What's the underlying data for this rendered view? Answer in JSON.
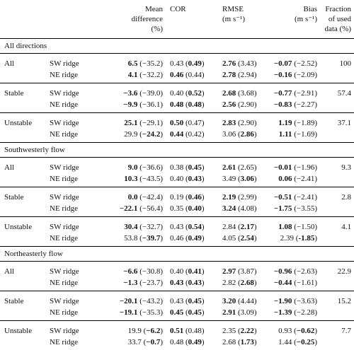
{
  "header": {
    "mean_difference": [
      "Mean",
      "difference",
      "(%)"
    ],
    "cor": "COR",
    "rmse": [
      "RMSE",
      "(m s⁻¹)"
    ],
    "bias": [
      "Bias",
      "(m s⁻¹)"
    ],
    "fraction": [
      "Fraction",
      "of used",
      "data (%)"
    ]
  },
  "sections": [
    {
      "title": "All directions",
      "groups": [
        {
          "condition": "All",
          "fraction": "100",
          "rows": [
            {
              "ridge": "SW ridge",
              "md_main": "6.5",
              "md_main_bold": true,
              "md_alt": "−35.2",
              "md_alt_bold": false,
              "cor_main": "0.43",
              "cor_main_bold": false,
              "cor_alt": "0.49",
              "cor_alt_bold": true,
              "rmse_main": "2.76",
              "rmse_main_bold": true,
              "rmse_alt": "3.43",
              "rmse_alt_bold": false,
              "bias_main": "−0.07",
              "bias_main_bold": true,
              "bias_alt": "−2.52",
              "bias_alt_bold": false
            },
            {
              "ridge": "NE ridge",
              "md_main": "4.1",
              "md_main_bold": true,
              "md_alt": "−32.2",
              "md_alt_bold": false,
              "cor_main": "0.46",
              "cor_main_bold": true,
              "cor_alt": "0.44",
              "cor_alt_bold": false,
              "rmse_main": "2.78",
              "rmse_main_bold": true,
              "rmse_alt": "2.94",
              "rmse_alt_bold": false,
              "bias_main": "−0.16",
              "bias_main_bold": true,
              "bias_alt": "−2.09",
              "bias_alt_bold": false
            }
          ]
        },
        {
          "condition": "Stable",
          "fraction": "57.4",
          "rows": [
            {
              "ridge": "SW ridge",
              "md_main": "−3.6",
              "md_main_bold": true,
              "md_alt": "−39.0",
              "md_alt_bold": false,
              "cor_main": "0.40",
              "cor_main_bold": false,
              "cor_alt": "0.52",
              "cor_alt_bold": true,
              "rmse_main": "2.68",
              "rmse_main_bold": true,
              "rmse_alt": "3.68",
              "rmse_alt_bold": false,
              "bias_main": "−0.77",
              "bias_main_bold": true,
              "bias_alt": "−2.91",
              "bias_alt_bold": false
            },
            {
              "ridge": "NE ridge",
              "md_main": "−9.9",
              "md_main_bold": true,
              "md_alt": "−36.1",
              "md_alt_bold": false,
              "cor_main": "0.48",
              "cor_main_bold": true,
              "cor_alt": "0.48",
              "cor_alt_bold": true,
              "rmse_main": "2.56",
              "rmse_main_bold": true,
              "rmse_alt": "2.90",
              "rmse_alt_bold": false,
              "bias_main": "−0.83",
              "bias_main_bold": true,
              "bias_alt": "−2.27",
              "bias_alt_bold": false
            }
          ]
        },
        {
          "condition": "Unstable",
          "fraction": "37.1",
          "rows": [
            {
              "ridge": "SW ridge",
              "md_main": "25.1",
              "md_main_bold": true,
              "md_alt": "−29.1",
              "md_alt_bold": false,
              "cor_main": "0.50",
              "cor_main_bold": true,
              "cor_alt": "0.47",
              "cor_alt_bold": false,
              "rmse_main": "2.83",
              "rmse_main_bold": true,
              "rmse_alt": "2.90",
              "rmse_alt_bold": false,
              "bias_main": "1.19",
              "bias_main_bold": true,
              "bias_alt": "−1.89",
              "bias_alt_bold": false
            },
            {
              "ridge": "NE ridge",
              "md_main": "29.9",
              "md_main_bold": false,
              "md_alt": "−24.2",
              "md_alt_bold": true,
              "cor_main": "0.44",
              "cor_main_bold": true,
              "cor_alt": "0.42",
              "cor_alt_bold": false,
              "rmse_main": "3.06",
              "rmse_main_bold": false,
              "rmse_alt": "2.86",
              "rmse_alt_bold": true,
              "bias_main": "1.11",
              "bias_main_bold": true,
              "bias_alt": "−1.69",
              "bias_alt_bold": false
            }
          ]
        }
      ]
    },
    {
      "title": "Southwesterly flow",
      "groups": [
        {
          "condition": "All",
          "fraction": "9.3",
          "rows": [
            {
              "ridge": "SW ridge",
              "md_main": "9.0",
              "md_main_bold": true,
              "md_alt": "−36.6",
              "md_alt_bold": false,
              "cor_main": "0.38",
              "cor_main_bold": false,
              "cor_alt": "0.45",
              "cor_alt_bold": true,
              "rmse_main": "2.61",
              "rmse_main_bold": true,
              "rmse_alt": "2.65",
              "rmse_alt_bold": false,
              "bias_main": "−0.01",
              "bias_main_bold": true,
              "bias_alt": "−1.96",
              "bias_alt_bold": false
            },
            {
              "ridge": "NE ridge",
              "md_main": "10.3",
              "md_main_bold": true,
              "md_alt": "−43.5",
              "md_alt_bold": false,
              "cor_main": "0.40",
              "cor_main_bold": false,
              "cor_alt": "0.43",
              "cor_alt_bold": true,
              "rmse_main": "3.49",
              "rmse_main_bold": false,
              "rmse_alt": "3.06",
              "rmse_alt_bold": true,
              "bias_main": "0.06",
              "bias_main_bold": true,
              "bias_alt": "−2.41",
              "bias_alt_bold": false
            }
          ]
        },
        {
          "condition": "Stable",
          "fraction": "2.8",
          "rows": [
            {
              "ridge": "SW ridge",
              "md_main": "0.0",
              "md_main_bold": true,
              "md_alt": "−42.4",
              "md_alt_bold": false,
              "cor_main": "0.19",
              "cor_main_bold": false,
              "cor_alt": "0.46",
              "cor_alt_bold": true,
              "rmse_main": "2.19",
              "rmse_main_bold": true,
              "rmse_alt": "2.99",
              "rmse_alt_bold": false,
              "bias_main": "−0.51",
              "bias_main_bold": true,
              "bias_alt": "−2.41",
              "bias_alt_bold": false
            },
            {
              "ridge": "NE ridge",
              "md_main": "−22.1",
              "md_main_bold": true,
              "md_alt": "−56.4",
              "md_alt_bold": false,
              "cor_main": "0.35",
              "cor_main_bold": false,
              "cor_alt": "0.40",
              "cor_alt_bold": true,
              "rmse_main": "3.24",
              "rmse_main_bold": true,
              "rmse_alt": "4.08",
              "rmse_alt_bold": false,
              "bias_main": "−1.75",
              "bias_main_bold": true,
              "bias_alt": "−3.55",
              "bias_alt_bold": false
            }
          ]
        },
        {
          "condition": "Unstable",
          "fraction": "4.1",
          "rows": [
            {
              "ridge": "SW ridge",
              "md_main": "30.4",
              "md_main_bold": true,
              "md_alt": "−32.7",
              "md_alt_bold": false,
              "cor_main": "0.43",
              "cor_main_bold": false,
              "cor_alt": "0.54",
              "cor_alt_bold": true,
              "rmse_main": "2.84",
              "rmse_main_bold": false,
              "rmse_alt": "2.17",
              "rmse_alt_bold": true,
              "bias_main": "1.08",
              "bias_main_bold": true,
              "bias_alt": "−1.50",
              "bias_alt_bold": false
            },
            {
              "ridge": "NE ridge",
              "md_main": "53.8",
              "md_main_bold": false,
              "md_alt": "−39.7",
              "md_alt_bold": true,
              "cor_main": "0.46",
              "cor_main_bold": false,
              "cor_alt": "0.49",
              "cor_alt_bold": true,
              "rmse_main": "4.05",
              "rmse_main_bold": false,
              "rmse_alt": "2.54",
              "rmse_alt_bold": true,
              "bias_main": "2.39",
              "bias_main_bold": false,
              "bias_alt": "-1.85",
              "bias_alt_bold": true
            }
          ]
        }
      ]
    },
    {
      "title": "Northeasterly flow",
      "groups": [
        {
          "condition": "All",
          "fraction": "22.9",
          "rows": [
            {
              "ridge": "SW ridge",
              "md_main": "−6.6",
              "md_main_bold": true,
              "md_alt": "−30.8",
              "md_alt_bold": false,
              "cor_main": "0.40",
              "cor_main_bold": false,
              "cor_alt": "0.41",
              "cor_alt_bold": true,
              "rmse_main": "2.97",
              "rmse_main_bold": true,
              "rmse_alt": "3.87",
              "rmse_alt_bold": false,
              "bias_main": "−0.96",
              "bias_main_bold": true,
              "bias_alt": "−2.63",
              "bias_alt_bold": false
            },
            {
              "ridge": "NE ridge",
              "md_main": "−1.3",
              "md_main_bold": true,
              "md_alt": "−23.7",
              "md_alt_bold": false,
              "cor_main": "0.43",
              "cor_main_bold": true,
              "cor_alt": "0.43",
              "cor_alt_bold": true,
              "rmse_main": "2.82",
              "rmse_main_bold": false,
              "rmse_alt": "2.68",
              "rmse_alt_bold": true,
              "bias_main": "−0.44",
              "bias_main_bold": true,
              "bias_alt": "−1.61",
              "bias_alt_bold": false
            }
          ]
        },
        {
          "condition": "Stable",
          "fraction": "15.2",
          "rows": [
            {
              "ridge": "SW ridge",
              "md_main": "−20.1",
              "md_main_bold": true,
              "md_alt": "−43.2",
              "md_alt_bold": false,
              "cor_main": "0.43",
              "cor_main_bold": false,
              "cor_alt": "0.45",
              "cor_alt_bold": true,
              "rmse_main": "3.20",
              "rmse_main_bold": true,
              "rmse_alt": "4.44",
              "rmse_alt_bold": false,
              "bias_main": "−1.90",
              "bias_main_bold": true,
              "bias_alt": "−3.63",
              "bias_alt_bold": false
            },
            {
              "ridge": "NE ridge",
              "md_main": "−19.1",
              "md_main_bold": true,
              "md_alt": "−35.3",
              "md_alt_bold": false,
              "cor_main": "0.45",
              "cor_main_bold": true,
              "cor_alt": "0.45",
              "cor_alt_bold": true,
              "rmse_main": "2.91",
              "rmse_main_bold": true,
              "rmse_alt": "3.09",
              "rmse_alt_bold": false,
              "bias_main": "−1.39",
              "bias_main_bold": true,
              "bias_alt": "−2.28",
              "bias_alt_bold": false
            }
          ]
        },
        {
          "condition": "Unstable",
          "fraction": "7.7",
          "rows": [
            {
              "ridge": "SW ridge",
              "md_main": "19.9",
              "md_main_bold": false,
              "md_alt": "−6.2",
              "md_alt_bold": true,
              "cor_main": "0.51",
              "cor_main_bold": true,
              "cor_alt": "0.48",
              "cor_alt_bold": false,
              "rmse_main": "2.35",
              "rmse_main_bold": false,
              "rmse_alt": "2.22",
              "rmse_alt_bold": true,
              "bias_main": "0.93",
              "bias_main_bold": false,
              "bias_alt": "−0.62",
              "bias_alt_bold": true
            },
            {
              "ridge": "NE ridge",
              "md_main": "33.7",
              "md_main_bold": false,
              "md_alt": "−0.7",
              "md_alt_bold": true,
              "cor_main": "0.48",
              "cor_main_bold": false,
              "cor_alt": "0.49",
              "cor_alt_bold": true,
              "rmse_main": "2.68",
              "rmse_main_bold": false,
              "rmse_alt": "1.73",
              "rmse_alt_bold": true,
              "bias_main": "1.44",
              "bias_main_bold": false,
              "bias_alt": "−0.25",
              "bias_alt_bold": true
            }
          ]
        }
      ]
    }
  ]
}
